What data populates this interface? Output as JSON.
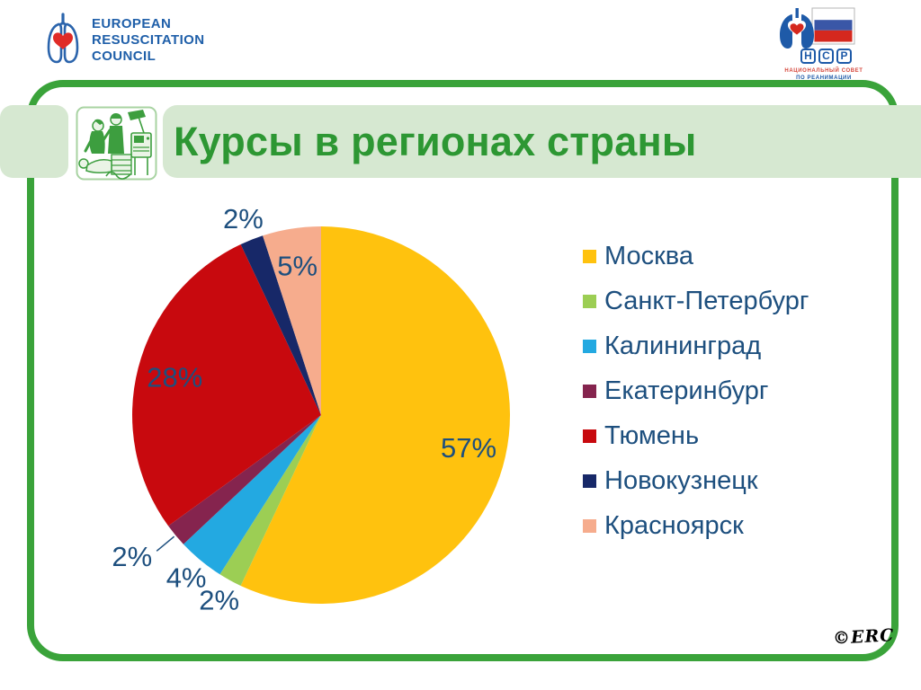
{
  "header": {
    "erc_logo": {
      "line1": "EUROPEAN",
      "line2": "RESUSCITATION",
      "line3": "COUNCIL"
    },
    "ncr_logo": {
      "letters": [
        "Н",
        "С",
        "Р"
      ],
      "caption_line1": "НАЦИОНАЛЬНЫЙ СОВЕТ",
      "caption_line2": "ПО РЕАНИМАЦИИ"
    }
  },
  "slide": {
    "title": "Курсы в регионах страны",
    "signature": "©ERC"
  },
  "colors": {
    "frame_green": "#3AA33A",
    "band_light_green": "#D6E8D1",
    "title_green": "#2D9733",
    "label_blue": "#1D4F7E"
  },
  "chart_data": {
    "type": "pie",
    "title": "Курсы в регионах страны",
    "start_angle_deg": 0,
    "direction": "clockwise",
    "legend_position": "right",
    "label_color": "#1D4F7E",
    "categories": [
      "Москва",
      "Санкт-Петербург",
      "Калининград",
      "Екатеринбург",
      "Тюмень",
      "Новокузнецк",
      "Красноярск"
    ],
    "values": [
      57,
      2,
      4,
      2,
      28,
      2,
      5
    ],
    "slices": [
      {
        "label": "Москва",
        "value_pct": 57,
        "data_label": "57%",
        "color": "#FFC20E",
        "label_placement": "inside"
      },
      {
        "label": "Санкт-Петербург",
        "value_pct": 2,
        "data_label": "2%",
        "color": "#9CCE54",
        "label_placement": "outside"
      },
      {
        "label": "Калининград",
        "value_pct": 4,
        "data_label": "4%",
        "color": "#23A9E1",
        "label_placement": "outside"
      },
      {
        "label": "Екатеринбург",
        "value_pct": 2,
        "data_label": "2%",
        "color": "#85244E",
        "label_placement": "outside",
        "leader_line": true
      },
      {
        "label": "Тюмень",
        "value_pct": 28,
        "data_label": "28%",
        "color": "#C8090E",
        "label_placement": "inside"
      },
      {
        "label": "Новокузнецк",
        "value_pct": 2,
        "data_label": "2%",
        "color": "#172868",
        "label_placement": "outside"
      },
      {
        "label": "Красноярск",
        "value_pct": 5,
        "data_label": "5%",
        "color": "#F6AC8D",
        "label_placement": "inside"
      }
    ]
  }
}
